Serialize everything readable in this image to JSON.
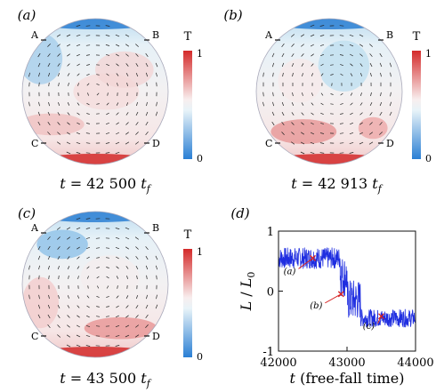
{
  "panels": [
    {
      "id": "a",
      "label": "(a)",
      "corners": [
        "A",
        "B",
        "C",
        "D"
      ],
      "caption_t": "t",
      "caption_eq": " = 42 500 ",
      "caption_unit": "t",
      "caption_sub": "f",
      "colorbar": {
        "title": "T",
        "max": "1",
        "min": "0"
      }
    },
    {
      "id": "b",
      "label": "(b)",
      "corners": [
        "A",
        "B",
        "C",
        "D"
      ],
      "caption_t": "t",
      "caption_eq": " = 42 913 ",
      "caption_unit": "t",
      "caption_sub": "f",
      "colorbar": {
        "title": "T",
        "max": "1",
        "min": "0"
      }
    },
    {
      "id": "c",
      "label": "(c)",
      "corners": [
        "A",
        "B",
        "C",
        "D"
      ],
      "caption_t": "t",
      "caption_eq": " = 43 500 ",
      "caption_unit": "t",
      "caption_sub": "f",
      "colorbar": {
        "title": "T",
        "max": "1",
        "min": "0"
      }
    }
  ],
  "colors": {
    "cold": "#2a7fd4",
    "hot": "#d42a2a",
    "neutral": "#eef5f9",
    "line": "#1f2ee0",
    "marker": "#d62020"
  },
  "chart_data": {
    "type": "line",
    "panel_label": "(d)",
    "xlabel_italic": "t",
    "xlabel_rest": " (free-fall time)",
    "ylabel_L": "L",
    "ylabel_sep": " / ",
    "ylabel_L0": "L",
    "ylabel_sub": "0",
    "xlim": [
      42000,
      44000
    ],
    "ylim": [
      -1,
      1
    ],
    "xticks": [
      42000,
      43000,
      44000
    ],
    "xtick_labels": [
      "42000",
      "43000",
      "44000"
    ],
    "yticks": [
      -1,
      0,
      1
    ],
    "ytick_labels": [
      "-1",
      "0",
      "1"
    ],
    "segments": [
      {
        "x0": 42000,
        "x1": 42900,
        "mean": 0.55,
        "amp": 0.18
      },
      {
        "x0": 42900,
        "x1": 43000,
        "mean": 0.25,
        "amp": 0.35
      },
      {
        "x0": 43000,
        "x1": 43200,
        "mean": -0.15,
        "amp": 0.35
      },
      {
        "x0": 43200,
        "x1": 44000,
        "mean": -0.45,
        "amp": 0.15
      }
    ],
    "markers": [
      {
        "label": "(a)",
        "x": 42500,
        "y": 0.55
      },
      {
        "label": "(b)",
        "x": 42913,
        "y": -0.05
      },
      {
        "label": "(c)",
        "x": 43500,
        "y": -0.42
      }
    ]
  }
}
